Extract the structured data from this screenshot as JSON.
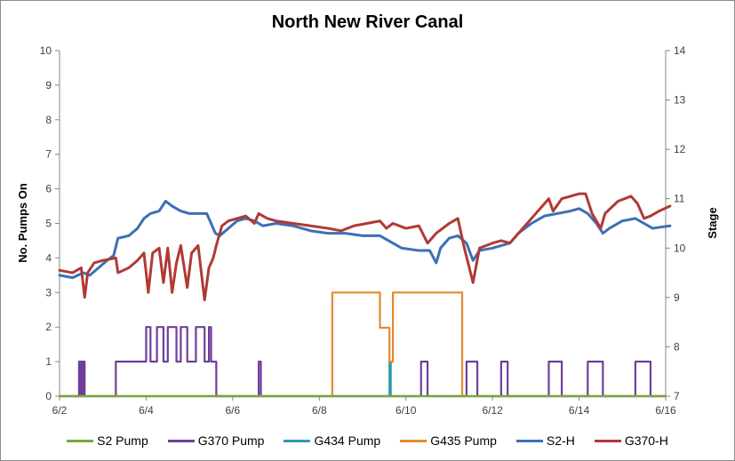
{
  "chart_data": {
    "type": "line",
    "title": "North New River Canal",
    "xlabel": "",
    "ylabel_left": "No. Pumps On",
    "ylabel_right": "Stage",
    "x_ticks": [
      "6/2",
      "6/4",
      "6/6",
      "6/8",
      "6/10",
      "6/12",
      "6/14",
      "6/16"
    ],
    "xlim": [
      2,
      16
    ],
    "ylim_left": [
      0,
      10
    ],
    "y_ticks_left": [
      "0",
      "1",
      "2",
      "3",
      "4",
      "5",
      "6",
      "7",
      "8",
      "9",
      "10"
    ],
    "ylim_right": [
      7,
      14
    ],
    "y_ticks_right": [
      "7",
      "8",
      "9",
      "10",
      "11",
      "12",
      "13",
      "14"
    ],
    "grid": false,
    "legend_position": "bottom",
    "series": [
      {
        "name": "S2 Pump",
        "axis": "left",
        "color": "#77a83a",
        "points": [
          [
            2.0,
            0
          ],
          [
            16.0,
            0
          ]
        ]
      },
      {
        "name": "G370 Pump",
        "axis": "left",
        "color": "#6d3f9a",
        "points": [
          [
            2.0,
            0
          ],
          [
            2.45,
            0
          ],
          [
            2.45,
            1
          ],
          [
            2.48,
            1
          ],
          [
            2.48,
            0
          ],
          [
            2.5,
            0
          ],
          [
            2.5,
            1
          ],
          [
            2.53,
            1
          ],
          [
            2.53,
            0
          ],
          [
            2.55,
            0
          ],
          [
            2.55,
            1
          ],
          [
            2.58,
            1
          ],
          [
            2.58,
            0
          ],
          [
            3.3,
            0
          ],
          [
            3.3,
            1
          ],
          [
            4.0,
            1
          ],
          [
            4.0,
            2
          ],
          [
            4.1,
            2
          ],
          [
            4.1,
            1
          ],
          [
            4.25,
            1
          ],
          [
            4.25,
            2
          ],
          [
            4.4,
            2
          ],
          [
            4.4,
            1
          ],
          [
            4.5,
            1
          ],
          [
            4.5,
            2
          ],
          [
            4.7,
            2
          ],
          [
            4.7,
            1
          ],
          [
            4.8,
            1
          ],
          [
            4.8,
            2
          ],
          [
            4.95,
            2
          ],
          [
            4.95,
            1
          ],
          [
            5.15,
            1
          ],
          [
            5.15,
            2
          ],
          [
            5.35,
            2
          ],
          [
            5.35,
            1
          ],
          [
            5.45,
            1
          ],
          [
            5.45,
            2
          ],
          [
            5.5,
            2
          ],
          [
            5.5,
            1
          ],
          [
            5.62,
            1
          ],
          [
            5.62,
            0
          ],
          [
            6.6,
            0
          ],
          [
            6.6,
            1
          ],
          [
            6.65,
            1
          ],
          [
            6.65,
            0
          ],
          [
            10.35,
            0
          ],
          [
            10.35,
            1
          ],
          [
            10.5,
            1
          ],
          [
            10.5,
            0
          ],
          [
            11.4,
            0
          ],
          [
            11.4,
            1
          ],
          [
            11.65,
            1
          ],
          [
            11.65,
            0
          ],
          [
            12.2,
            0
          ],
          [
            12.2,
            1
          ],
          [
            12.35,
            1
          ],
          [
            12.35,
            0
          ],
          [
            13.3,
            0
          ],
          [
            13.3,
            1
          ],
          [
            13.6,
            1
          ],
          [
            13.6,
            0
          ],
          [
            14.2,
            0
          ],
          [
            14.2,
            1
          ],
          [
            14.55,
            1
          ],
          [
            14.55,
            0
          ],
          [
            15.3,
            0
          ],
          [
            15.3,
            1
          ],
          [
            15.65,
            1
          ],
          [
            15.65,
            0
          ],
          [
            16.0,
            0
          ]
        ]
      },
      {
        "name": "G434 Pump",
        "axis": "left",
        "color": "#2f9bac",
        "points": [
          [
            2.0,
            0
          ],
          [
            9.62,
            0
          ],
          [
            9.62,
            1
          ],
          [
            9.65,
            1
          ],
          [
            9.65,
            0
          ],
          [
            16.0,
            0
          ]
        ]
      },
      {
        "name": "G435 Pump",
        "axis": "left",
        "color": "#e28b2d",
        "points": [
          [
            2.0,
            0
          ],
          [
            8.3,
            0
          ],
          [
            8.3,
            3
          ],
          [
            9.4,
            3
          ],
          [
            9.4,
            1.98
          ],
          [
            9.62,
            1.98
          ],
          [
            9.62,
            1
          ],
          [
            9.7,
            1
          ],
          [
            9.7,
            3
          ],
          [
            11.3,
            3
          ],
          [
            11.3,
            0
          ],
          [
            16.0,
            0
          ]
        ]
      },
      {
        "name": "S2-H",
        "axis": "right",
        "color": "#3d6fb5",
        "points": [
          [
            2.0,
            9.45
          ],
          [
            2.3,
            9.4
          ],
          [
            2.55,
            9.5
          ],
          [
            2.7,
            9.45
          ],
          [
            2.9,
            9.6
          ],
          [
            3.1,
            9.75
          ],
          [
            3.25,
            9.85
          ],
          [
            3.35,
            10.2
          ],
          [
            3.6,
            10.25
          ],
          [
            3.8,
            10.4
          ],
          [
            3.95,
            10.6
          ],
          [
            4.1,
            10.7
          ],
          [
            4.3,
            10.75
          ],
          [
            4.45,
            10.95
          ],
          [
            4.6,
            10.85
          ],
          [
            4.8,
            10.75
          ],
          [
            5.0,
            10.7
          ],
          [
            5.2,
            10.7
          ],
          [
            5.4,
            10.7
          ],
          [
            5.6,
            10.3
          ],
          [
            5.7,
            10.25
          ],
          [
            5.9,
            10.4
          ],
          [
            6.1,
            10.55
          ],
          [
            6.3,
            10.6
          ],
          [
            6.5,
            10.55
          ],
          [
            6.7,
            10.45
          ],
          [
            7.0,
            10.5
          ],
          [
            7.4,
            10.45
          ],
          [
            7.8,
            10.35
          ],
          [
            8.2,
            10.3
          ],
          [
            8.6,
            10.3
          ],
          [
            9.0,
            10.25
          ],
          [
            9.4,
            10.25
          ],
          [
            9.6,
            10.15
          ],
          [
            9.9,
            10.0
          ],
          [
            10.3,
            9.95
          ],
          [
            10.55,
            9.95
          ],
          [
            10.7,
            9.7
          ],
          [
            10.8,
            10.0
          ],
          [
            11.0,
            10.2
          ],
          [
            11.2,
            10.25
          ],
          [
            11.4,
            10.1
          ],
          [
            11.55,
            9.75
          ],
          [
            11.7,
            9.95
          ],
          [
            12.0,
            10.0
          ],
          [
            12.2,
            10.05
          ],
          [
            12.4,
            10.1
          ],
          [
            12.6,
            10.3
          ],
          [
            12.9,
            10.5
          ],
          [
            13.2,
            10.65
          ],
          [
            13.5,
            10.7
          ],
          [
            13.8,
            10.75
          ],
          [
            14.0,
            10.8
          ],
          [
            14.2,
            10.7
          ],
          [
            14.4,
            10.5
          ],
          [
            14.55,
            10.3
          ],
          [
            14.7,
            10.4
          ],
          [
            15.0,
            10.55
          ],
          [
            15.3,
            10.6
          ],
          [
            15.5,
            10.5
          ],
          [
            15.7,
            10.4
          ],
          [
            15.85,
            10.42
          ],
          [
            16.1,
            10.45
          ]
        ]
      },
      {
        "name": "G370-H",
        "axis": "right",
        "color": "#b03a34",
        "points": [
          [
            2.0,
            9.55
          ],
          [
            2.3,
            9.5
          ],
          [
            2.5,
            9.6
          ],
          [
            2.58,
            9.0
          ],
          [
            2.65,
            9.5
          ],
          [
            2.8,
            9.7
          ],
          [
            3.0,
            9.75
          ],
          [
            3.3,
            9.8
          ],
          [
            3.35,
            9.5
          ],
          [
            3.6,
            9.6
          ],
          [
            3.8,
            9.75
          ],
          [
            3.95,
            9.9
          ],
          [
            4.05,
            9.1
          ],
          [
            4.15,
            9.9
          ],
          [
            4.3,
            10.0
          ],
          [
            4.4,
            9.3
          ],
          [
            4.5,
            10.0
          ],
          [
            4.6,
            9.1
          ],
          [
            4.7,
            9.7
          ],
          [
            4.8,
            10.05
          ],
          [
            4.95,
            9.2
          ],
          [
            5.05,
            9.9
          ],
          [
            5.2,
            10.05
          ],
          [
            5.35,
            8.95
          ],
          [
            5.45,
            9.6
          ],
          [
            5.55,
            9.8
          ],
          [
            5.62,
            10.05
          ],
          [
            5.75,
            10.45
          ],
          [
            5.9,
            10.55
          ],
          [
            6.1,
            10.6
          ],
          [
            6.3,
            10.65
          ],
          [
            6.5,
            10.5
          ],
          [
            6.6,
            10.7
          ],
          [
            6.8,
            10.6
          ],
          [
            7.0,
            10.55
          ],
          [
            7.4,
            10.5
          ],
          [
            7.8,
            10.45
          ],
          [
            8.2,
            10.4
          ],
          [
            8.5,
            10.35
          ],
          [
            8.8,
            10.45
          ],
          [
            9.1,
            10.5
          ],
          [
            9.4,
            10.55
          ],
          [
            9.55,
            10.4
          ],
          [
            9.7,
            10.5
          ],
          [
            10.0,
            10.4
          ],
          [
            10.3,
            10.45
          ],
          [
            10.5,
            10.1
          ],
          [
            10.7,
            10.3
          ],
          [
            11.0,
            10.5
          ],
          [
            11.2,
            10.6
          ],
          [
            11.35,
            10.0
          ],
          [
            11.55,
            9.3
          ],
          [
            11.7,
            10.0
          ],
          [
            12.0,
            10.1
          ],
          [
            12.2,
            10.15
          ],
          [
            12.4,
            10.1
          ],
          [
            12.6,
            10.3
          ],
          [
            12.9,
            10.6
          ],
          [
            13.1,
            10.8
          ],
          [
            13.3,
            11.0
          ],
          [
            13.4,
            10.75
          ],
          [
            13.6,
            11.0
          ],
          [
            13.8,
            11.05
          ],
          [
            14.0,
            11.1
          ],
          [
            14.15,
            11.1
          ],
          [
            14.3,
            10.7
          ],
          [
            14.5,
            10.4
          ],
          [
            14.6,
            10.7
          ],
          [
            14.9,
            10.95
          ],
          [
            15.2,
            11.05
          ],
          [
            15.35,
            10.9
          ],
          [
            15.5,
            10.6
          ],
          [
            15.65,
            10.65
          ],
          [
            15.85,
            10.75
          ],
          [
            16.1,
            10.85
          ]
        ]
      }
    ]
  }
}
